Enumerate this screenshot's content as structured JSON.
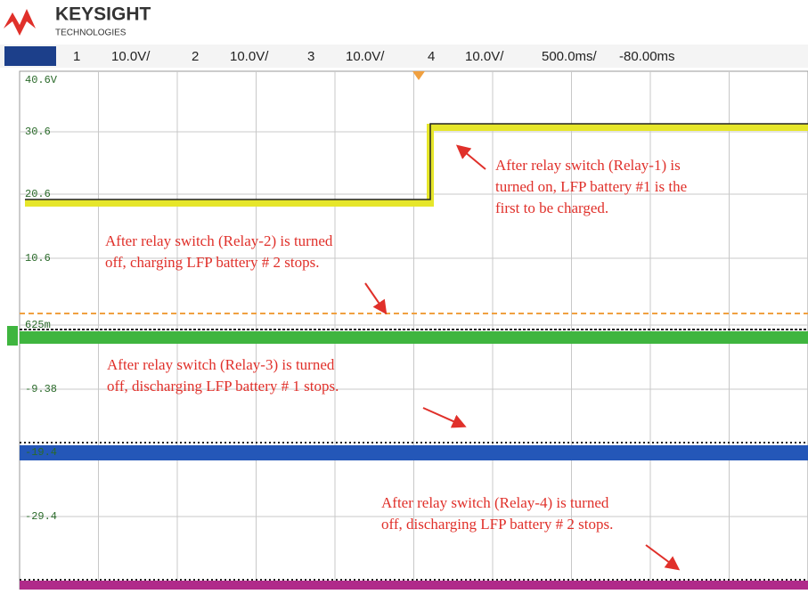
{
  "header": {
    "brand": "KEYSIGHT",
    "brand_sub": "TECHNOLOGIES",
    "settings": [
      {
        "text": "1",
        "color": "#d8c820"
      },
      {
        "text": "10.0V/",
        "color": "#222"
      },
      {
        "text": "2",
        "color": "#3fa53f"
      },
      {
        "text": "10.0V/",
        "color": "#222"
      },
      {
        "text": "3",
        "color": "#2457b8"
      },
      {
        "text": "10.0V/",
        "color": "#222"
      },
      {
        "text": "4",
        "color": "#b02a8a"
      },
      {
        "text": "10.0V/",
        "color": "#222"
      },
      {
        "text": "500.0ms/",
        "color": "#222"
      },
      {
        "text": "-80.00ms",
        "color": "#222"
      }
    ]
  },
  "levels": [
    "40.6V",
    "30.6",
    "20.6",
    "10.6",
    "625m",
    "-9.38",
    "-19.4",
    "-29.4"
  ],
  "annotations": [
    [
      "After relay switch (Relay-1) is",
      "turned on, LFP battery #1 is the",
      "first to be charged."
    ],
    [
      "After relay switch (Relay-2) is turned",
      "off, charging LFP battery # 2 stops."
    ],
    [
      "After relay switch (Relay-3) is turned",
      "off, discharging LFP battery # 1 stops."
    ],
    [
      "After relay switch (Relay-4) is turned",
      "off, discharging LFP battery # 2 stops."
    ]
  ]
}
